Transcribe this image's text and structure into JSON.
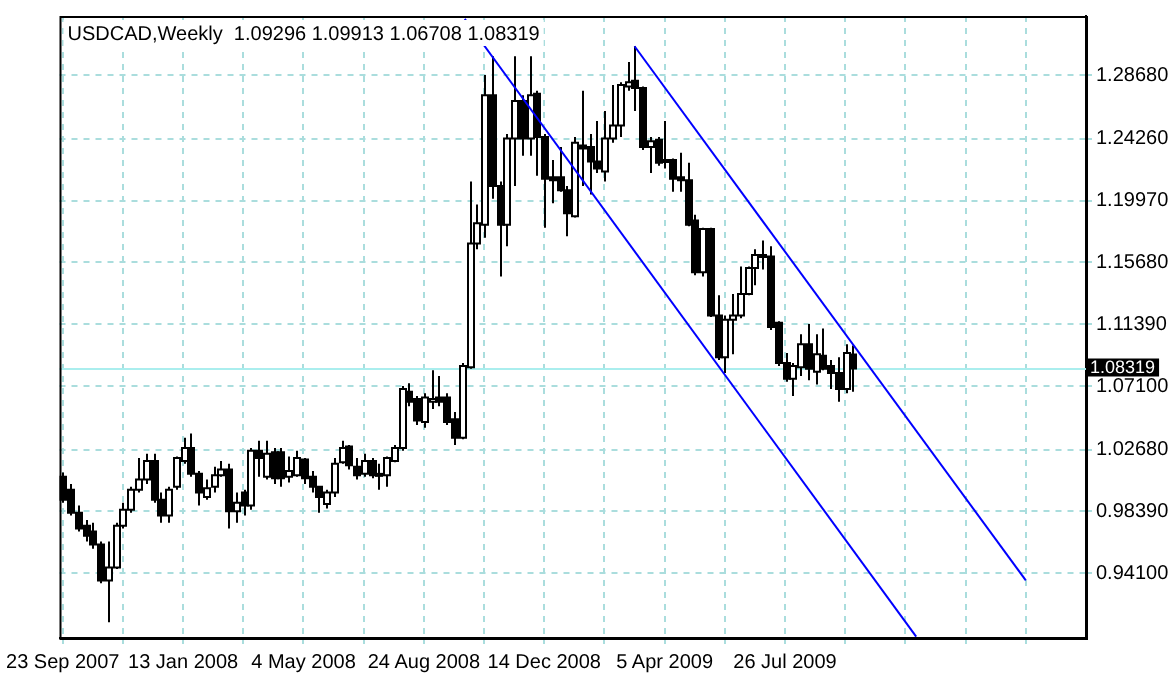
{
  "chart_data": {
    "type": "candlestick",
    "title": "USDCAD,Weekly  1.09296 1.09913 1.06708 1.08319",
    "x": [
      "2007-09-23",
      "2007-09-30",
      "2007-10-07",
      "2007-10-14",
      "2007-10-21",
      "2007-10-28",
      "2007-11-04",
      "2007-11-11",
      "2007-11-18",
      "2007-11-25",
      "2007-12-02",
      "2007-12-09",
      "2007-12-16",
      "2007-12-23",
      "2007-12-30",
      "2008-01-06",
      "2008-01-13",
      "2008-01-20",
      "2008-01-27",
      "2008-02-03",
      "2008-02-10",
      "2008-02-17",
      "2008-02-24",
      "2008-03-02",
      "2008-03-09",
      "2008-03-16",
      "2008-03-23",
      "2008-03-30",
      "2008-04-06",
      "2008-04-13",
      "2008-04-20",
      "2008-04-27",
      "2008-05-04",
      "2008-05-11",
      "2008-05-18",
      "2008-05-25",
      "2008-06-01",
      "2008-06-08",
      "2008-06-15",
      "2008-06-22",
      "2008-06-29",
      "2008-07-06",
      "2008-07-13",
      "2008-07-20",
      "2008-07-27",
      "2008-08-03",
      "2008-08-10",
      "2008-08-17",
      "2008-08-24",
      "2008-08-31",
      "2008-09-07",
      "2008-09-14",
      "2008-09-21",
      "2008-09-28",
      "2008-10-05",
      "2008-10-12",
      "2008-10-19",
      "2008-10-26",
      "2008-11-02",
      "2008-11-09",
      "2008-11-16",
      "2008-11-23",
      "2008-11-30",
      "2008-12-07",
      "2008-12-14",
      "2008-12-21",
      "2008-12-28",
      "2009-01-04",
      "2009-01-11",
      "2009-01-18",
      "2009-01-25",
      "2009-02-01",
      "2009-02-08",
      "2009-02-15",
      "2009-02-22",
      "2009-03-01",
      "2009-03-08",
      "2009-03-15",
      "2009-03-22",
      "2009-03-29",
      "2009-04-05",
      "2009-04-12",
      "2009-04-19",
      "2009-04-26",
      "2009-05-03",
      "2009-05-10",
      "2009-05-17",
      "2009-05-24",
      "2009-05-31",
      "2009-06-07",
      "2009-06-14",
      "2009-06-21",
      "2009-06-28",
      "2009-07-05",
      "2009-07-12",
      "2009-07-19",
      "2009-07-26",
      "2009-08-02",
      "2009-08-09",
      "2009-08-16",
      "2009-08-23",
      "2009-08-30",
      "2009-09-06",
      "2009-09-13",
      "2009-09-20",
      "2009-09-27"
    ],
    "ohlc": [
      [
        1.008,
        1.011,
        0.99,
        0.992
      ],
      [
        0.999,
        1.003,
        0.981,
        0.983
      ],
      [
        0.983,
        0.988,
        0.97,
        0.972
      ],
      [
        0.974,
        0.978,
        0.963,
        0.967
      ],
      [
        0.97,
        0.976,
        0.958,
        0.961
      ],
      [
        0.961,
        0.963,
        0.934,
        0.936
      ],
      [
        0.936,
        0.963,
        0.907,
        0.945
      ],
      [
        0.945,
        0.976,
        0.944,
        0.974
      ],
      [
        0.974,
        0.99,
        0.972,
        0.985
      ],
      [
        0.985,
        1.001,
        0.983,
        0.999
      ],
      [
        0.999,
        1.021,
        0.997,
        1.006
      ],
      [
        1.006,
        1.024,
        1.003,
        1.019
      ],
      [
        1.019,
        1.024,
        0.99,
        0.992
      ],
      [
        0.992,
        0.997,
        0.976,
        0.981
      ],
      [
        0.981,
        1.001,
        0.976,
        0.999
      ],
      [
        1.001,
        1.022,
        0.999,
        1.021
      ],
      [
        1.019,
        1.035,
        1.017,
        1.028
      ],
      [
        1.028,
        1.038,
        1.008,
        1.01
      ],
      [
        1.01,
        1.012,
        0.988,
        0.997
      ],
      [
        0.994,
        1.006,
        0.992,
        1.0
      ],
      [
        1.001,
        1.015,
        0.997,
        1.009
      ],
      [
        1.009,
        1.019,
        1.008,
        1.013
      ],
      [
        1.013,
        1.017,
        0.972,
        0.984
      ],
      [
        0.984,
        0.997,
        0.976,
        0.99
      ],
      [
        0.997,
        0.999,
        0.981,
        0.988
      ],
      [
        0.988,
        1.028,
        0.985,
        1.026
      ],
      [
        1.026,
        1.033,
        1.008,
        1.021
      ],
      [
        1.008,
        1.033,
        1.006,
        1.024
      ],
      [
        1.025,
        1.028,
        1.003,
        1.007
      ],
      [
        1.025,
        1.028,
        1.001,
        1.007
      ],
      [
        1.008,
        1.022,
        1.004,
        1.012
      ],
      [
        1.009,
        1.026,
        1.008,
        1.021
      ],
      [
        1.02,
        1.021,
        1.003,
        1.007
      ],
      [
        1.008,
        1.012,
        0.997,
        1.001
      ],
      [
        1.001,
        1.001,
        0.983,
        0.994
      ],
      [
        0.989,
        0.999,
        0.986,
        0.997
      ],
      [
        0.997,
        1.021,
        0.994,
        1.017
      ],
      [
        1.018,
        1.033,
        1.017,
        1.028
      ],
      [
        1.029,
        1.03,
        1.013,
        1.016
      ],
      [
        1.015,
        1.021,
        1.006,
        1.009
      ],
      [
        1.01,
        1.024,
        1.008,
        1.019
      ],
      [
        1.019,
        1.021,
        1.007,
        1.009
      ],
      [
        1.01,
        1.017,
        0.999,
        1.009
      ],
      [
        1.009,
        1.022,
        1.001,
        1.021
      ],
      [
        1.019,
        1.03,
        1.018,
        1.028
      ],
      [
        1.028,
        1.071,
        1.026,
        1.069
      ],
      [
        1.067,
        1.073,
        1.057,
        1.06
      ],
      [
        1.062,
        1.064,
        1.044,
        1.047
      ],
      [
        1.046,
        1.066,
        1.042,
        1.063
      ],
      [
        1.06,
        1.082,
        1.055,
        1.062
      ],
      [
        1.063,
        1.078,
        1.057,
        1.06
      ],
      [
        1.063,
        1.066,
        1.044,
        1.046
      ],
      [
        1.048,
        1.053,
        1.03,
        1.035
      ],
      [
        1.035,
        1.087,
        1.034,
        1.085
      ],
      [
        1.084,
        1.213,
        1.083,
        1.17
      ],
      [
        1.17,
        1.197,
        1.166,
        1.184
      ],
      [
        1.183,
        1.287,
        1.174,
        1.273
      ],
      [
        1.273,
        1.3,
        1.201,
        1.21
      ],
      [
        1.21,
        1.213,
        1.147,
        1.183
      ],
      [
        1.183,
        1.246,
        1.168,
        1.243
      ],
      [
        1.243,
        1.3,
        1.21,
        1.269
      ],
      [
        1.269,
        1.273,
        1.231,
        1.243
      ],
      [
        1.243,
        1.3,
        1.231,
        1.273
      ],
      [
        1.274,
        1.276,
        1.217,
        1.244
      ],
      [
        1.244,
        1.246,
        1.181,
        1.215
      ],
      [
        1.216,
        1.228,
        1.198,
        1.214
      ],
      [
        1.216,
        1.237,
        1.206,
        1.207
      ],
      [
        1.207,
        1.21,
        1.175,
        1.191
      ],
      [
        1.189,
        1.244,
        1.188,
        1.24
      ],
      [
        1.238,
        1.276,
        1.21,
        1.236
      ],
      [
        1.237,
        1.246,
        1.204,
        1.227
      ],
      [
        1.227,
        1.255,
        1.219,
        1.222
      ],
      [
        1.22,
        1.262,
        1.213,
        1.243
      ],
      [
        1.243,
        1.28,
        1.24,
        1.252
      ],
      [
        1.252,
        1.282,
        1.244,
        1.28
      ],
      [
        1.279,
        1.296,
        1.276,
        1.282
      ],
      [
        1.283,
        1.307,
        1.262,
        1.278
      ],
      [
        1.278,
        1.279,
        1.235,
        1.237
      ],
      [
        1.237,
        1.244,
        1.219,
        1.241
      ],
      [
        1.242,
        1.244,
        1.224,
        1.226
      ],
      [
        1.228,
        1.255,
        1.222,
        1.227
      ],
      [
        1.228,
        1.229,
        1.206,
        1.215
      ],
      [
        1.216,
        1.233,
        1.206,
        1.214
      ],
      [
        1.214,
        1.226,
        1.182,
        1.183
      ],
      [
        1.186,
        1.19,
        1.148,
        1.15
      ],
      [
        1.15,
        1.181,
        1.147,
        1.18
      ],
      [
        1.18,
        1.181,
        1.119,
        1.12
      ],
      [
        1.12,
        1.134,
        1.089,
        1.091
      ],
      [
        1.091,
        1.12,
        1.08,
        1.117
      ],
      [
        1.117,
        1.135,
        1.093,
        1.12
      ],
      [
        1.12,
        1.154,
        1.118,
        1.135
      ],
      [
        1.135,
        1.154,
        1.134,
        1.153
      ],
      [
        1.153,
        1.166,
        1.141,
        1.162
      ],
      [
        1.162,
        1.172,
        1.152,
        1.161
      ],
      [
        1.161,
        1.168,
        1.11,
        1.112
      ],
      [
        1.115,
        1.116,
        1.085,
        1.087
      ],
      [
        1.087,
        1.094,
        1.074,
        1.076
      ],
      [
        1.076,
        1.087,
        1.064,
        1.085
      ],
      [
        1.084,
        1.107,
        1.078,
        1.1
      ],
      [
        1.1,
        1.114,
        1.075,
        1.083
      ],
      [
        1.081,
        1.107,
        1.072,
        1.093
      ],
      [
        1.092,
        1.111,
        1.082,
        1.083
      ],
      [
        1.085,
        1.089,
        1.069,
        1.08
      ],
      [
        1.08,
        1.091,
        1.06,
        1.069
      ],
      [
        1.069,
        1.1,
        1.066,
        1.094
      ],
      [
        1.09296,
        1.09913,
        1.06708,
        1.08319
      ]
    ],
    "series": [
      {
        "type": "line",
        "x": [
          "2008-10-01",
          "2009-11-25"
        ],
        "values": [
          1.326,
          0.897
        ],
        "color": "#0000ff"
      },
      {
        "type": "line",
        "x": [
          "2009-03-08",
          "2010-03-07"
        ],
        "values": [
          1.307,
          0.936
        ],
        "color": "#0000ff"
      }
    ],
    "ref_lines": [
      {
        "axis": "y",
        "value": 1.08319,
        "label": "1.08319",
        "color": "#aaeeee"
      }
    ],
    "xlim": [
      "2007-09-20",
      "2010-05-02"
    ],
    "xticks": [
      {
        "value": "2007-09-23",
        "label": "23 Sep 2007"
      },
      {
        "value": "2007-11-18",
        "label": null
      },
      {
        "value": "2008-01-13",
        "label": "13 Jan 2008"
      },
      {
        "value": "2008-03-09",
        "label": null
      },
      {
        "value": "2008-05-04",
        "label": "4 May 2008"
      },
      {
        "value": "2008-06-29",
        "label": null
      },
      {
        "value": "2008-08-24",
        "label": "24 Aug 2008"
      },
      {
        "value": "2008-10-19",
        "label": null
      },
      {
        "value": "2008-12-14",
        "label": "14 Dec 2008"
      },
      {
        "value": "2009-02-08",
        "label": null
      },
      {
        "value": "2009-04-05",
        "label": "5 Apr 2009"
      },
      {
        "value": "2009-05-31",
        "label": null
      },
      {
        "value": "2009-07-26",
        "label": "26 Jul 2009"
      },
      {
        "value": "2009-09-20",
        "label": null
      },
      {
        "value": "2009-11-15",
        "label": null
      },
      {
        "value": "2010-01-10",
        "label": null
      },
      {
        "value": "2010-03-07",
        "label": null
      }
    ],
    "ylim": [
      0.896,
      1.328
    ],
    "yticks": [
      {
        "value": 0.941,
        "label": "0.94100"
      },
      {
        "value": 0.9839,
        "label": "0.98390"
      },
      {
        "value": 1.0268,
        "label": "1.02680"
      },
      {
        "value": 1.071,
        "label": "1.07100"
      },
      {
        "value": 1.1139,
        "label": "1.11390"
      },
      {
        "value": 1.1568,
        "label": "1.15680"
      },
      {
        "value": 1.1997,
        "label": "1.19970"
      },
      {
        "value": 1.2426,
        "label": "1.24260"
      },
      {
        "value": 1.2868,
        "label": "1.28680"
      }
    ],
    "grid": true
  }
}
